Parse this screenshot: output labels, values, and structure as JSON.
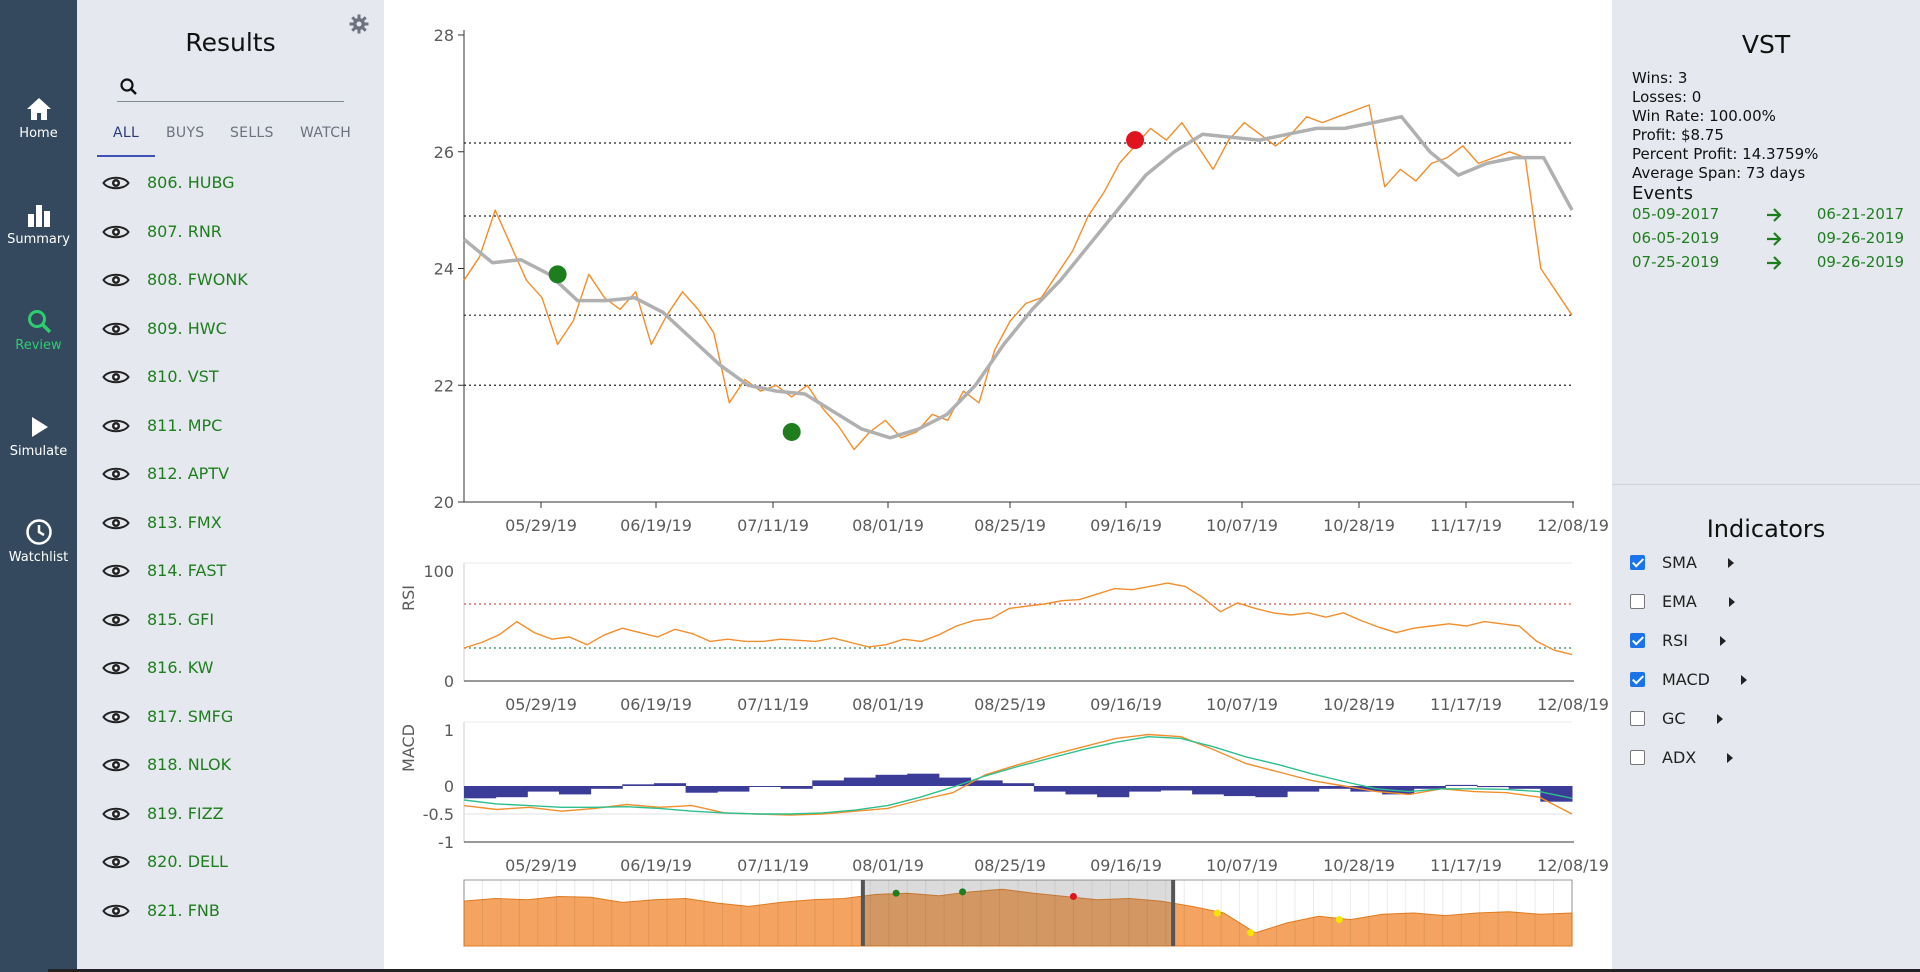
{
  "nav": [
    {
      "label": "Home",
      "icon": "home-icon",
      "active": false
    },
    {
      "label": "Summary",
      "icon": "bar-chart-icon",
      "active": false
    },
    {
      "label": "Review",
      "icon": "search-icon",
      "active": true
    },
    {
      "label": "Simulate",
      "icon": "play-icon",
      "active": false
    },
    {
      "label": "Watchlist",
      "icon": "clock-icon",
      "active": false
    }
  ],
  "results": {
    "title": "Results",
    "search": {
      "value": "",
      "placeholder": ""
    },
    "tabs": [
      "ALL",
      "BUYS",
      "SELLS",
      "WATCH"
    ],
    "active_tab": "ALL",
    "items": [
      "806. HUBG",
      "807. RNR",
      "808. FWONK",
      "809. HWC",
      "810. VST",
      "811. MPC",
      "812. APTV",
      "813. FMX",
      "814. FAST",
      "815. GFI",
      "816. KW",
      "817. SMFG",
      "818. NLOK",
      "819. FIZZ",
      "820. DELL",
      "821. FNB"
    ]
  },
  "symbol": {
    "title": "VST",
    "stats": [
      "Wins: 3",
      "Losses: 0",
      "Win Rate: 100.00%",
      "Profit: $8.75",
      "Percent Profit: 14.3759%",
      "Average Span: 73 days"
    ],
    "events_title": "Events",
    "events": [
      {
        "from": "05-09-2017",
        "to": "06-21-2017"
      },
      {
        "from": "06-05-2019",
        "to": "09-26-2019"
      },
      {
        "from": "07-25-2019",
        "to": "09-26-2019"
      }
    ]
  },
  "indicators": {
    "title": "Indicators",
    "items": [
      {
        "name": "SMA",
        "checked": true
      },
      {
        "name": "EMA",
        "checked": false
      },
      {
        "name": "RSI",
        "checked": true
      },
      {
        "name": "MACD",
        "checked": true
      },
      {
        "name": "GC",
        "checked": false
      },
      {
        "name": "ADX",
        "checked": false
      }
    ]
  },
  "colors": {
    "price": "#f28e2b",
    "sma": "#b0b0b0",
    "buy": "#1e7e1e",
    "sell": "#e0141e",
    "histogram": "#3b3b98",
    "signal": "#2ebf8f",
    "nav_bg": "#34495e",
    "panel_bg": "#e5e8ee"
  },
  "chart_data": [
    {
      "type": "line",
      "title": "",
      "xlabel": "",
      "ylabel": "",
      "x_tick_labels": [
        "05/29/19",
        "06/19/19",
        "07/11/19",
        "08/01/19",
        "08/25/19",
        "09/16/19",
        "10/07/19",
        "10/28/19",
        "11/17/19",
        "12/08/19"
      ],
      "y_ticks": [
        20,
        22,
        24,
        26,
        28
      ],
      "ylim": [
        20,
        28
      ],
      "support_resistance_levels": [
        22.0,
        23.2,
        24.9,
        26.15
      ],
      "series": [
        {
          "style": "price",
          "values": [
            23.8,
            24.2,
            25.0,
            24.4,
            23.8,
            23.5,
            22.7,
            23.1,
            23.9,
            23.5,
            23.3,
            23.6,
            22.7,
            23.2,
            23.6,
            23.3,
            22.9,
            21.7,
            22.1,
            21.9,
            22.0,
            21.8,
            22.0,
            21.6,
            21.3,
            20.9,
            21.2,
            21.4,
            21.1,
            21.2,
            21.5,
            21.4,
            21.9,
            21.7,
            22.6,
            23.1,
            23.4,
            23.5,
            23.9,
            24.3,
            24.9,
            25.3,
            25.8,
            26.1,
            26.4,
            26.2,
            26.5,
            26.1,
            25.7,
            26.2,
            26.5,
            26.3,
            26.1,
            26.3,
            26.6,
            26.5,
            26.6,
            26.7,
            26.8,
            25.4,
            25.7,
            25.5,
            25.8,
            25.9,
            26.1,
            25.8,
            25.9,
            26.0,
            25.9,
            24.0,
            23.6,
            23.2
          ]
        },
        {
          "style": "sma",
          "values": [
            24.5,
            24.1,
            24.15,
            23.9,
            23.45,
            23.45,
            23.5,
            23.25,
            22.8,
            22.35,
            22.0,
            21.9,
            21.85,
            21.55,
            21.25,
            21.1,
            21.25,
            21.5,
            22.0,
            22.7,
            23.3,
            23.8,
            24.4,
            25.0,
            25.6,
            26.0,
            26.3,
            26.25,
            26.2,
            26.3,
            26.4,
            26.4,
            26.5,
            26.6,
            26.0,
            25.6,
            25.8,
            25.9,
            25.9,
            25.0
          ]
        }
      ],
      "markers": [
        {
          "kind": "buy",
          "date_index": 6,
          "value": 23.9
        },
        {
          "kind": "buy",
          "date_index": 21,
          "value": 21.2
        },
        {
          "kind": "sell",
          "date_index": 43,
          "value": 26.2
        }
      ]
    },
    {
      "type": "line",
      "title": "",
      "ylabel": "RSI",
      "x_tick_labels": [
        "05/29/19",
        "06/19/19",
        "07/11/19",
        "08/01/19",
        "08/25/19",
        "09/16/19",
        "10/07/19",
        "10/28/19",
        "11/17/19",
        "12/08/19"
      ],
      "y_ticks": [
        0,
        100
      ],
      "ylim": [
        0,
        100
      ],
      "reference_levels": [
        30,
        70
      ],
      "series": [
        {
          "style": "price",
          "values": [
            30,
            35,
            42,
            54,
            44,
            38,
            40,
            33,
            42,
            48,
            44,
            40,
            47,
            43,
            36,
            38,
            36,
            36,
            38,
            37,
            36,
            39,
            35,
            31,
            33,
            38,
            36,
            42,
            50,
            55,
            57,
            66,
            68,
            70,
            73,
            74,
            79,
            84,
            83,
            86,
            89,
            86,
            76,
            63,
            71,
            66,
            62,
            60,
            62,
            58,
            62,
            55,
            49,
            44,
            48,
            50,
            52,
            50,
            54,
            52,
            50,
            36,
            28,
            24
          ]
        }
      ]
    },
    {
      "type": "line",
      "title": "",
      "ylabel": "MACD",
      "x_tick_labels": [
        "05/29/19",
        "06/19/19",
        "07/11/19",
        "08/01/19",
        "08/25/19",
        "09/16/19",
        "10/07/19",
        "10/28/19",
        "11/17/19",
        "12/08/19"
      ],
      "y_tick_labels": [
        "1",
        "0",
        "-0.5",
        "-1"
      ],
      "ylim": [
        -1,
        1
      ],
      "series": [
        {
          "style": "macd",
          "values": [
            -0.35,
            -0.42,
            -0.38,
            -0.45,
            -0.4,
            -0.33,
            -0.38,
            -0.35,
            -0.48,
            -0.5,
            -0.52,
            -0.5,
            -0.45,
            -0.4,
            -0.25,
            -0.12,
            0.2,
            0.38,
            0.55,
            0.7,
            0.85,
            0.92,
            0.88,
            0.65,
            0.4,
            0.25,
            0.1,
            0.0,
            -0.1,
            -0.15,
            -0.05,
            -0.1,
            -0.12,
            -0.2,
            -0.5
          ]
        },
        {
          "style": "signal",
          "values": [
            -0.25,
            -0.32,
            -0.35,
            -0.38,
            -0.38,
            -0.37,
            -0.4,
            -0.45,
            -0.48,
            -0.5,
            -0.5,
            -0.48,
            -0.43,
            -0.35,
            -0.2,
            -0.02,
            0.18,
            0.35,
            0.5,
            0.65,
            0.78,
            0.88,
            0.85,
            0.7,
            0.52,
            0.38,
            0.22,
            0.08,
            -0.05,
            -0.1,
            -0.05,
            -0.05,
            -0.06,
            -0.1,
            -0.22
          ]
        },
        {
          "style": "histogram",
          "values": [
            -0.22,
            -0.2,
            -0.1,
            -0.15,
            -0.05,
            0.03,
            0.05,
            -0.12,
            -0.1,
            0.0,
            -0.05,
            0.1,
            0.15,
            0.2,
            0.22,
            0.15,
            0.1,
            0.05,
            -0.1,
            -0.15,
            -0.2,
            -0.1,
            -0.08,
            -0.15,
            -0.18,
            -0.2,
            -0.1,
            -0.05,
            -0.1,
            -0.15,
            -0.05,
            0.02,
            -0.02,
            -0.05,
            -0.28
          ]
        }
      ]
    },
    {
      "type": "area",
      "title": "",
      "role": "range selector / navigator",
      "series": [
        {
          "style": "price",
          "values": [
            0.68,
            0.72,
            0.7,
            0.75,
            0.74,
            0.66,
            0.7,
            0.72,
            0.65,
            0.6,
            0.66,
            0.7,
            0.72,
            0.78,
            0.8,
            0.76,
            0.82,
            0.86,
            0.8,
            0.75,
            0.7,
            0.72,
            0.68,
            0.6,
            0.5,
            0.2,
            0.35,
            0.45,
            0.4,
            0.48,
            0.5,
            0.46,
            0.5,
            0.52,
            0.48,
            0.5
          ]
        }
      ],
      "selected_range_fraction": [
        0.36,
        0.64
      ],
      "markers": [
        {
          "kind": "buy",
          "position_fraction": 0.39
        },
        {
          "kind": "buy",
          "position_fraction": 0.45
        },
        {
          "kind": "sell",
          "position_fraction": 0.55
        },
        {
          "kind": "watch",
          "position_fraction": 0.68
        },
        {
          "kind": "watch",
          "position_fraction": 0.71
        },
        {
          "kind": "watch",
          "position_fraction": 0.79
        }
      ]
    }
  ]
}
